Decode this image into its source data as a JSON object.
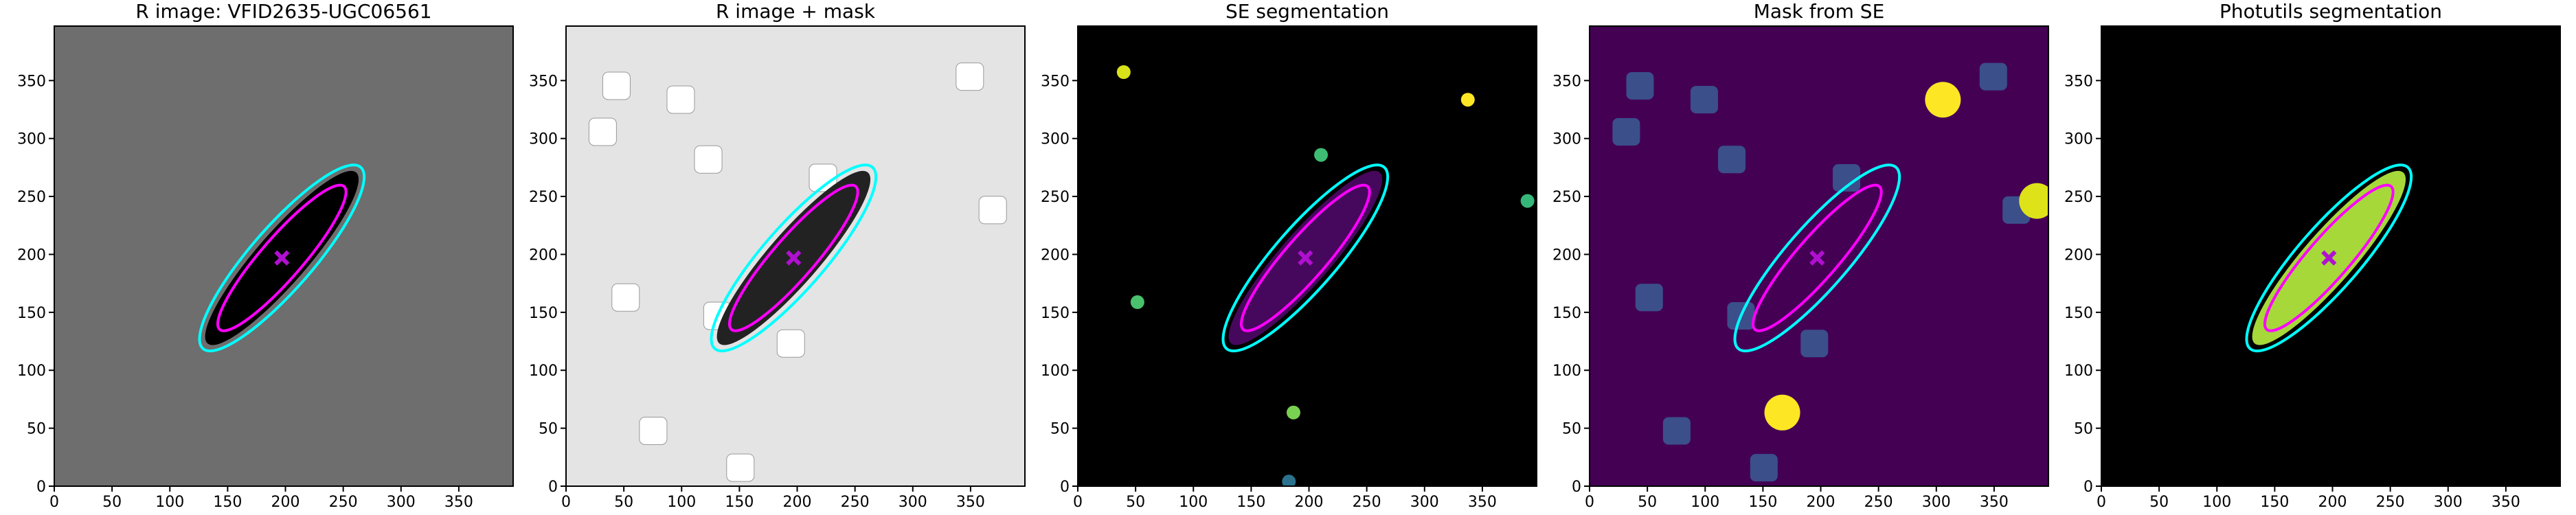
{
  "chart_data": [
    {
      "type": "image",
      "title": "R image: VFID2635-UGC06561",
      "background": "#6e6e6e",
      "galaxy_color": "#000000",
      "xlim": [
        0,
        397
      ],
      "ylim": [
        0,
        397
      ],
      "xticks": [
        0,
        50,
        100,
        150,
        200,
        250,
        300,
        350
      ],
      "yticks": [
        0,
        50,
        100,
        150,
        200,
        250,
        300,
        350
      ]
    },
    {
      "type": "image",
      "title": "R image + mask",
      "background": "#e4e4e4",
      "galaxy_color": "#222222",
      "xlim": [
        0,
        397
      ],
      "ylim": [
        0,
        397
      ],
      "xticks": [
        0,
        50,
        100,
        150,
        200,
        250,
        300,
        350
      ],
      "yticks": [
        0,
        50,
        100,
        150,
        200,
        250,
        300,
        350
      ]
    },
    {
      "type": "image",
      "title": "SE segmentation",
      "background": "#000000",
      "galaxy_color": "#46085c",
      "xlim": [
        0,
        397
      ],
      "ylim": [
        0,
        397
      ],
      "xticks": [
        0,
        50,
        100,
        150,
        200,
        250,
        300,
        350
      ],
      "yticks": [
        0,
        50,
        100,
        150,
        200,
        250,
        300,
        350
      ]
    },
    {
      "type": "image",
      "title": "Mask from SE",
      "background": "#440154",
      "galaxy_color": "#440154",
      "xlim": [
        0,
        397
      ],
      "ylim": [
        0,
        397
      ],
      "xticks": [
        0,
        50,
        100,
        150,
        200,
        250,
        300,
        350
      ],
      "yticks": [
        0,
        50,
        100,
        150,
        200,
        250,
        300,
        350
      ]
    },
    {
      "type": "image",
      "title": "Photutils segmentation",
      "background": "#000000",
      "galaxy_color": "#a6d83a",
      "xlim": [
        0,
        397
      ],
      "ylim": [
        0,
        397
      ],
      "xticks": [
        0,
        50,
        100,
        150,
        200,
        250,
        300,
        350
      ],
      "yticks": [
        0,
        50,
        100,
        150,
        200,
        250,
        300,
        350
      ]
    }
  ]
}
